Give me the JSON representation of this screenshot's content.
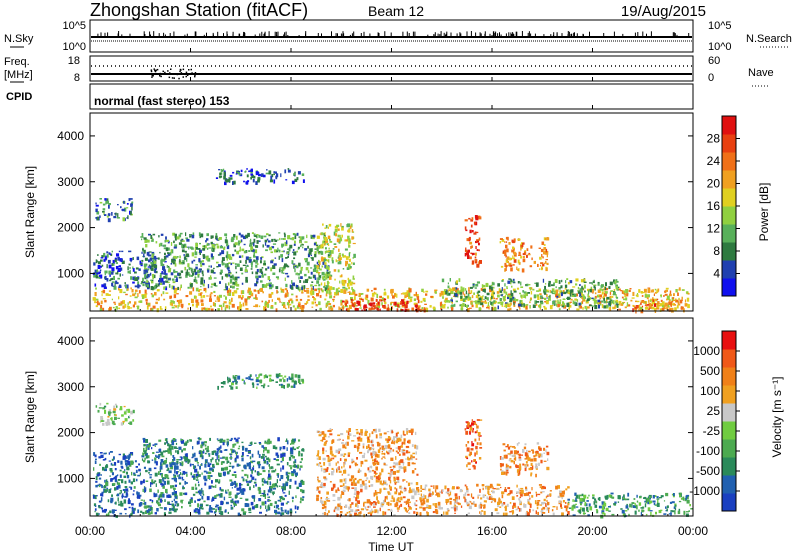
{
  "header": {
    "station": "Zhongshan Station (fitACF)",
    "beam": "Beam 12",
    "date": "19/Aug/2015"
  },
  "panels": {
    "nsky": {
      "label": "N.Sky",
      "tick_top": "10^5",
      "tick_bottom": "10^0"
    },
    "nsearch": {
      "label": "N.Search",
      "tick_top": "10^5",
      "tick_bottom": "10^0"
    },
    "freq": {
      "label_line1": "Freq.",
      "label_line2": "[MHz]",
      "tick_top": "18",
      "tick_bottom": "8"
    },
    "nave": {
      "label": "Nave",
      "tick_top": "60",
      "tick_bottom": "0"
    },
    "cpid": {
      "label": "CPID",
      "text": "normal (fast stereo) 153"
    }
  },
  "chart_data": [
    {
      "type": "heatmap",
      "name": "power",
      "ylabel": "Slant Range [km]",
      "ylim": [
        180,
        4500
      ],
      "yticks": [
        "1000",
        "2000",
        "3000",
        "4000"
      ],
      "xlabel": "Time UT",
      "xlim_hours": [
        0,
        24
      ],
      "xticks": [
        "00:00",
        "04:00",
        "08:00",
        "12:00",
        "16:00",
        "20:00",
        "00:00"
      ],
      "colorbar": {
        "label": "Power [dB]",
        "ticks": [
          "4",
          "8",
          "12",
          "16",
          "20",
          "24",
          "28"
        ],
        "colors": [
          "#1010ee",
          "#2040b0",
          "#2e7a40",
          "#58b05a",
          "#90d040",
          "#e0d020",
          "#f0a020",
          "#f07018",
          "#e84010",
          "#e01010"
        ]
      },
      "echo_regions": [
        {
          "t0": 0.1,
          "t1": 23.8,
          "r0": 230,
          "r1": 700,
          "level": 0.6
        },
        {
          "t0": 0.1,
          "t1": 3.0,
          "r0": 700,
          "r1": 1500,
          "level": 0.2
        },
        {
          "t0": 0.2,
          "t1": 1.7,
          "r0": 2200,
          "r1": 2650,
          "level": 0.25
        },
        {
          "t0": 2.0,
          "t1": 9.5,
          "r0": 700,
          "r1": 1900,
          "level": 0.3
        },
        {
          "t0": 5.0,
          "t1": 8.5,
          "r0": 3000,
          "r1": 3300,
          "level": 0.2
        },
        {
          "t0": 9.0,
          "t1": 10.5,
          "r0": 600,
          "r1": 2100,
          "level": 0.5
        },
        {
          "t0": 10.0,
          "t1": 13.5,
          "r0": 200,
          "r1": 450,
          "level": 0.95
        },
        {
          "t0": 14.9,
          "t1": 15.5,
          "r0": 1200,
          "r1": 2300,
          "level": 0.85
        },
        {
          "t0": 16.3,
          "t1": 18.2,
          "r0": 1100,
          "r1": 1800,
          "level": 0.7
        },
        {
          "t0": 14.0,
          "t1": 21.0,
          "r0": 300,
          "r1": 900,
          "level": 0.35
        },
        {
          "t0": 21.5,
          "t1": 23.9,
          "r0": 200,
          "r1": 450,
          "level": 0.75
        }
      ]
    },
    {
      "type": "heatmap",
      "name": "velocity",
      "ylabel": "Slant Range [km]",
      "ylim": [
        180,
        4500
      ],
      "yticks": [
        "1000",
        "2000",
        "3000",
        "4000"
      ],
      "xlabel": "Time UT",
      "xlim_hours": [
        0,
        24
      ],
      "xticks": [
        "00:00",
        "04:00",
        "08:00",
        "12:00",
        "16:00",
        "20:00",
        "00:00"
      ],
      "colorbar": {
        "label": "Velocity [m s⁻¹]",
        "ticks": [
          "1000",
          "500",
          "100",
          "25",
          "-25",
          "-100",
          "-500",
          "-1000"
        ],
        "colors": [
          "#1a40c0",
          "#2060b0",
          "#2a8a5a",
          "#4caa50",
          "#70cc40",
          "#c8c8c8",
          "#f0a020",
          "#f08018",
          "#f05818",
          "#e81010"
        ]
      },
      "echo_regions": [
        {
          "t0": 0.1,
          "t1": 2.0,
          "r0": 200,
          "r1": 1600,
          "level": 0.15
        },
        {
          "t0": 0.2,
          "t1": 1.7,
          "r0": 2200,
          "r1": 2650,
          "level": 0.45
        },
        {
          "t0": 2.0,
          "t1": 8.5,
          "r0": 250,
          "r1": 1900,
          "level": 0.22
        },
        {
          "t0": 5.0,
          "t1": 8.5,
          "r0": 3000,
          "r1": 3300,
          "level": 0.3
        },
        {
          "t0": 9.0,
          "t1": 13.0,
          "r0": 200,
          "r1": 2100,
          "level": 0.68
        },
        {
          "t0": 13.0,
          "t1": 19.0,
          "r0": 250,
          "r1": 900,
          "level": 0.68
        },
        {
          "t0": 14.9,
          "t1": 15.5,
          "r0": 1200,
          "r1": 2300,
          "level": 0.78
        },
        {
          "t0": 16.3,
          "t1": 18.2,
          "r0": 1100,
          "r1": 1800,
          "level": 0.72
        },
        {
          "t0": 19.0,
          "t1": 23.9,
          "r0": 200,
          "r1": 700,
          "level": 0.3
        }
      ]
    }
  ]
}
